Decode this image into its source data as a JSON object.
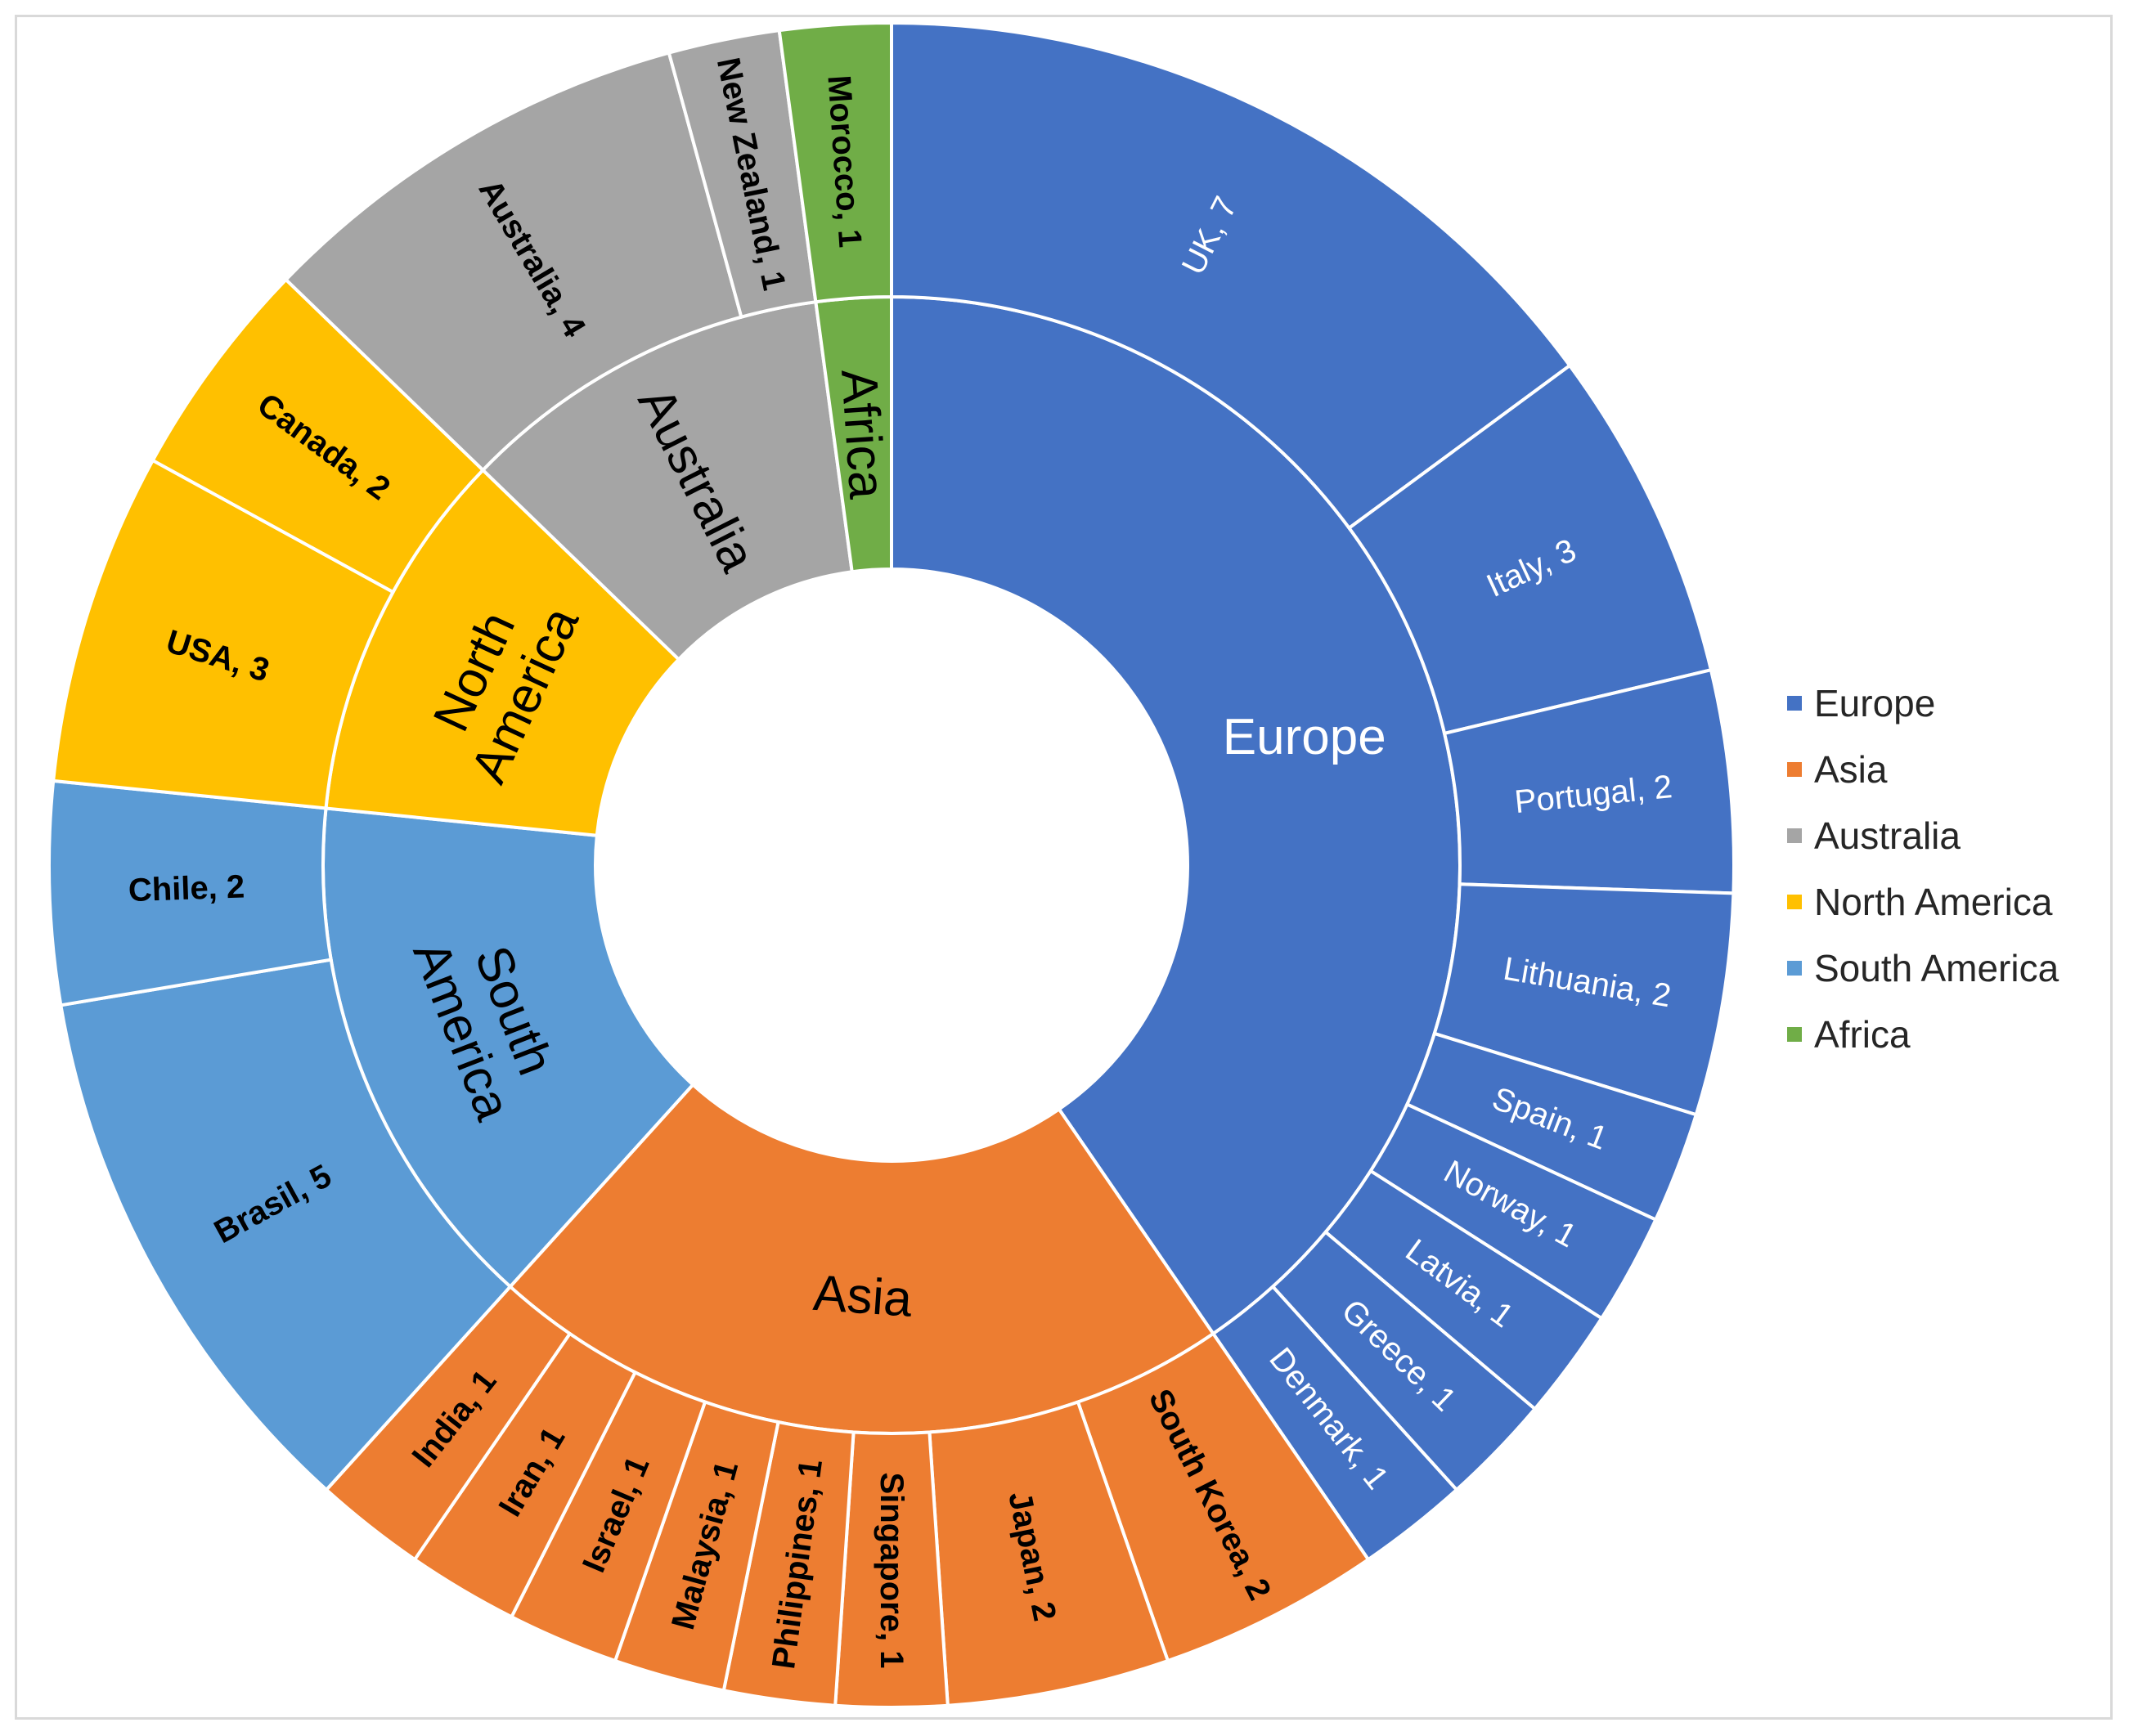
{
  "chart_data": {
    "type": "sunburst",
    "title": "",
    "legend_position": "right",
    "series": [
      {
        "name": "Europe",
        "color": "#4472C4",
        "label_color": "#ffffff",
        "children": [
          {
            "name": "UK",
            "value": 7,
            "label": "UK, 7"
          },
          {
            "name": "Italy",
            "value": 3,
            "label": "Italy, 3"
          },
          {
            "name": "Portugal",
            "value": 2,
            "label": "Portugal, 2"
          },
          {
            "name": "Lithuania",
            "value": 2,
            "label": "Lithuania, 2"
          },
          {
            "name": "Spain",
            "value": 1,
            "label": "Spain, 1"
          },
          {
            "name": "Norway",
            "value": 1,
            "label": "Norway, 1"
          },
          {
            "name": "Latvia",
            "value": 1,
            "label": "Latvia, 1"
          },
          {
            "name": "Greece",
            "value": 1,
            "label": "Greece, 1"
          },
          {
            "name": "Denmark",
            "value": 1,
            "label": "Denmark, 1"
          }
        ]
      },
      {
        "name": "Asia",
        "color": "#ED7D31",
        "label_color": "#000000",
        "children": [
          {
            "name": "South Korea",
            "value": 2,
            "label": "South Korea, 2"
          },
          {
            "name": "Japan",
            "value": 2,
            "label": "Japan, 2"
          },
          {
            "name": "Singapore",
            "value": 1,
            "label": "Singapore, 1"
          },
          {
            "name": "Philippines",
            "value": 1,
            "label": "Philippines, 1"
          },
          {
            "name": "Malaysia",
            "value": 1,
            "label": "Malaysia, 1"
          },
          {
            "name": "Israel",
            "value": 1,
            "label": "Israel, 1"
          },
          {
            "name": "Iran",
            "value": 1,
            "label": "Iran, 1"
          },
          {
            "name": "India",
            "value": 1,
            "label": "India, 1"
          }
        ]
      },
      {
        "name": "South America",
        "color": "#5B9BD5",
        "label_color": "#000000",
        "children": [
          {
            "name": "Brasil",
            "value": 5,
            "label": "Brasil, 5"
          },
          {
            "name": "Chile",
            "value": 2,
            "label": "Chile, 2"
          }
        ]
      },
      {
        "name": "North America",
        "color": "#FFC000",
        "label_color": "#000000",
        "children": [
          {
            "name": "USA",
            "value": 3,
            "label": "USA, 3"
          },
          {
            "name": "Canada",
            "value": 2,
            "label": "Canada, 2"
          }
        ]
      },
      {
        "name": "Australia",
        "color": "#A5A5A5",
        "label_color": "#000000",
        "children": [
          {
            "name": "Australia",
            "value": 4,
            "label": "Australia, 4"
          },
          {
            "name": "New Zealand",
            "value": 1,
            "label": "New Zealand, 1"
          }
        ]
      },
      {
        "name": "Africa",
        "color": "#70AD47",
        "label_color": "#000000",
        "children": [
          {
            "name": "Morocco",
            "value": 1,
            "label": "Morocco, 1"
          }
        ]
      }
    ],
    "legend": [
      "Europe",
      "Asia",
      "Australia",
      "North America",
      "South America",
      "Africa"
    ]
  }
}
